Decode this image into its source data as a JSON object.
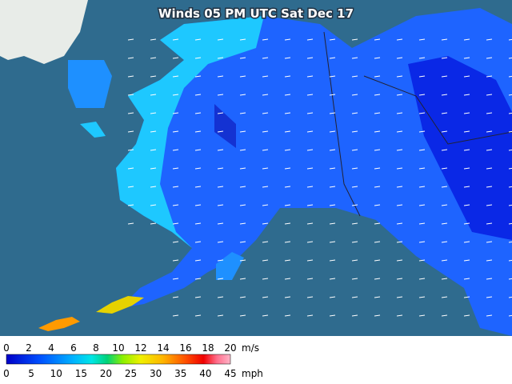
{
  "map": {
    "title": "Winds 05 PM UTC Sat Dec 17",
    "legend": {
      "ms_ticks": [
        0,
        2,
        4,
        6,
        8,
        10,
        12,
        14,
        16,
        18,
        20
      ],
      "ms_unit": "m/s",
      "mph_ticks": [
        0,
        5,
        10,
        15,
        20,
        25,
        30,
        35,
        40,
        45
      ],
      "mph_unit": "mph"
    }
  }
}
